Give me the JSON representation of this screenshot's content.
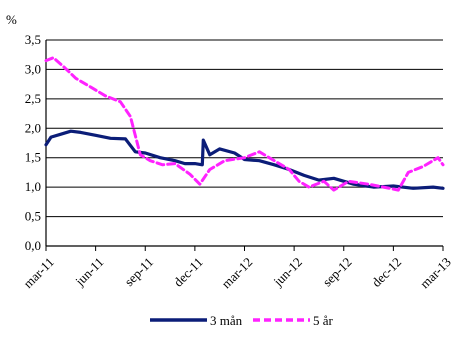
{
  "chart_data": {
    "type": "line",
    "ylabel": "%",
    "ylim": [
      0,
      3.5
    ],
    "yticks": [
      "0,0",
      "0,5",
      "1,0",
      "1,5",
      "2,0",
      "2,5",
      "3,0",
      "3,5"
    ],
    "ytick_values": [
      0,
      0.5,
      1.0,
      1.5,
      2.0,
      2.5,
      3.0,
      3.5
    ],
    "categories": [
      "mar-11",
      "jun-11",
      "sep-11",
      "dec-11",
      "mar-12",
      "jun-12",
      "sep-12",
      "dec-12",
      "mar-13"
    ],
    "grid": "horizontal",
    "legend_position": "bottom",
    "series": [
      {
        "name": "3 mån",
        "color": "#0b1d78",
        "style": "solid",
        "x": [
          0,
          0.1,
          0.3,
          0.5,
          0.7,
          1.0,
          1.3,
          1.6,
          1.8,
          2.0,
          2.3,
          2.6,
          2.8,
          3.0,
          3.15,
          3.17,
          3.3,
          3.5,
          3.8,
          4.0,
          4.3,
          4.6,
          4.9,
          5.2,
          5.5,
          5.8,
          6.2,
          6.6,
          7.0,
          7.4,
          7.8,
          8.0
        ],
        "y": [
          1.72,
          1.85,
          1.9,
          1.95,
          1.93,
          1.88,
          1.83,
          1.82,
          1.6,
          1.58,
          1.5,
          1.45,
          1.4,
          1.4,
          1.38,
          1.8,
          1.55,
          1.65,
          1.58,
          1.47,
          1.45,
          1.38,
          1.3,
          1.2,
          1.12,
          1.15,
          1.05,
          1.0,
          1.02,
          0.98,
          1.0,
          0.98
        ]
      },
      {
        "name": "5 år",
        "color": "#ff22ff",
        "style": "dashed",
        "x": [
          0,
          0.15,
          0.35,
          0.6,
          0.9,
          1.2,
          1.5,
          1.7,
          1.9,
          2.1,
          2.35,
          2.6,
          2.9,
          3.1,
          3.3,
          3.6,
          4.0,
          4.3,
          4.6,
          4.9,
          5.1,
          5.3,
          5.6,
          5.8,
          6.1,
          6.5,
          6.8,
          7.1,
          7.3,
          7.6,
          7.9,
          8.0
        ],
        "y": [
          3.15,
          3.2,
          3.05,
          2.85,
          2.7,
          2.55,
          2.45,
          2.2,
          1.55,
          1.45,
          1.38,
          1.4,
          1.22,
          1.05,
          1.3,
          1.45,
          1.5,
          1.6,
          1.45,
          1.3,
          1.1,
          1.0,
          1.1,
          0.95,
          1.1,
          1.05,
          1.0,
          0.95,
          1.25,
          1.35,
          1.5,
          1.38
        ]
      }
    ]
  }
}
